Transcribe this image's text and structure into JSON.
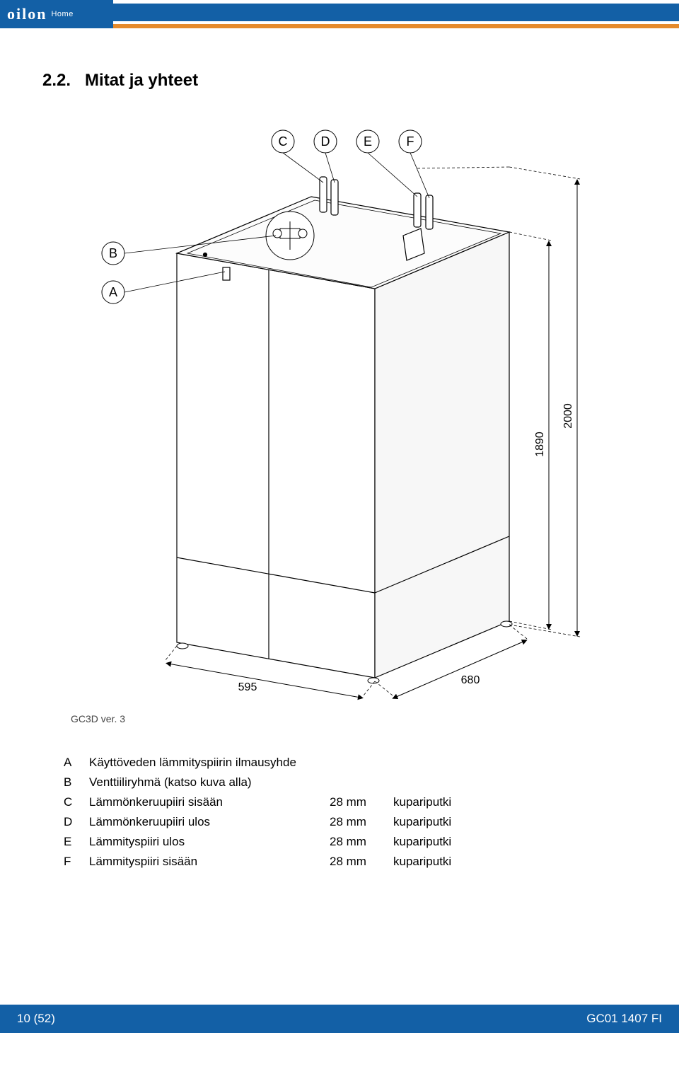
{
  "header": {
    "logo_main": "oilon",
    "logo_sub": "Home"
  },
  "section": {
    "number": "2.2.",
    "title": "Mitat ja yhteet"
  },
  "diagram": {
    "labels": {
      "top": [
        "C",
        "D",
        "E",
        "F"
      ],
      "side": [
        "B",
        "A"
      ]
    },
    "dimensions": {
      "width": "595",
      "depth": "680",
      "height_inner": "1890",
      "height_outer": "2000"
    },
    "caption": "GC3D ver. 3",
    "stroke": "#000000",
    "dash": "4 3",
    "label_fontsize": 18,
    "dim_fontsize": 16
  },
  "table": {
    "rows": [
      {
        "key": "A",
        "desc": "Käyttöveden lämmityspiirin ilmausyhde",
        "dim": "",
        "mat": ""
      },
      {
        "key": "B",
        "desc": "Venttiiliryhmä (katso kuva alla)",
        "dim": "",
        "mat": ""
      },
      {
        "key": "C",
        "desc": "Lämmönkeruupiiri sisään",
        "dim": "28 mm",
        "mat": "kupariputki"
      },
      {
        "key": "D",
        "desc": "Lämmönkeruupiiri ulos",
        "dim": "28 mm",
        "mat": "kupariputki"
      },
      {
        "key": "E",
        "desc": "Lämmityspiiri ulos",
        "dim": "28 mm",
        "mat": "kupariputki"
      },
      {
        "key": "F",
        "desc": "Lämmityspiiri sisään",
        "dim": "28 mm",
        "mat": "kupariputki"
      }
    ]
  },
  "footer": {
    "left": "10 (52)",
    "right": "GC01 1407 FI"
  }
}
